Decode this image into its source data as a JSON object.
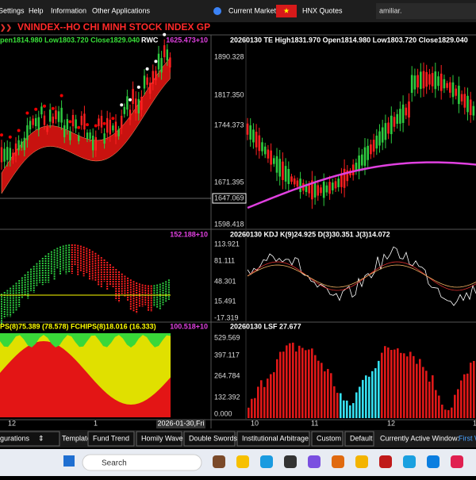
{
  "menu": {
    "items": [
      "Settings",
      "Help",
      "Information",
      "Other Applications"
    ],
    "market_label": "Current Market:",
    "market_value": "HNX Quotes",
    "notice": "amiliar."
  },
  "title": "VNINDEX--HO CHI MINH STOCK INDEX  GP",
  "panels": [
    {
      "left_header": "pen1814.980 Low1803.720 Close1829.040",
      "left_tag": "RWC",
      "left_value": "1625.473+10",
      "right_header": "20260130 TE High1831.970 Open1814.980 Low1803.720 Close1829.040",
      "y_labels": [
        "1890.328",
        "1817.350",
        "1744.373",
        "1671.395",
        "1647.069",
        "1598.418"
      ]
    },
    {
      "left_header": "",
      "left_tag": "",
      "left_value": "152.188+10",
      "right_header": "20260130 KDJ K(9)24.925 D(3)30.351 J(3)14.072",
      "y_labels": [
        "113.921",
        "81.111",
        "48.301",
        "15.491",
        "-17.319"
      ]
    },
    {
      "left_header": "PS(8)75.389 (78.578) FCHIPS(8)18.016 (16.333)",
      "left_tag": "",
      "left_value": "100.518+10",
      "right_header": "20260130 LSF 27.677",
      "y_labels": [
        "529.569",
        "397.117",
        "264.784",
        "132.392",
        "0.000"
      ]
    }
  ],
  "x_axis": {
    "left": [
      "12",
      "1"
    ],
    "date": "2026-01-30,Fri",
    "right": [
      "10",
      "11",
      "12",
      "1"
    ]
  },
  "toolbar": {
    "buttons": [
      "igurations",
      "Template",
      "Fund Trend",
      "Homily Wave",
      "Double Swords",
      "Institutional Arbitrage",
      "Custom",
      "Default"
    ],
    "active_label": "Currently Active Window:",
    "active_value": "First W"
  },
  "taskbar": {
    "search": "Search"
  }
}
